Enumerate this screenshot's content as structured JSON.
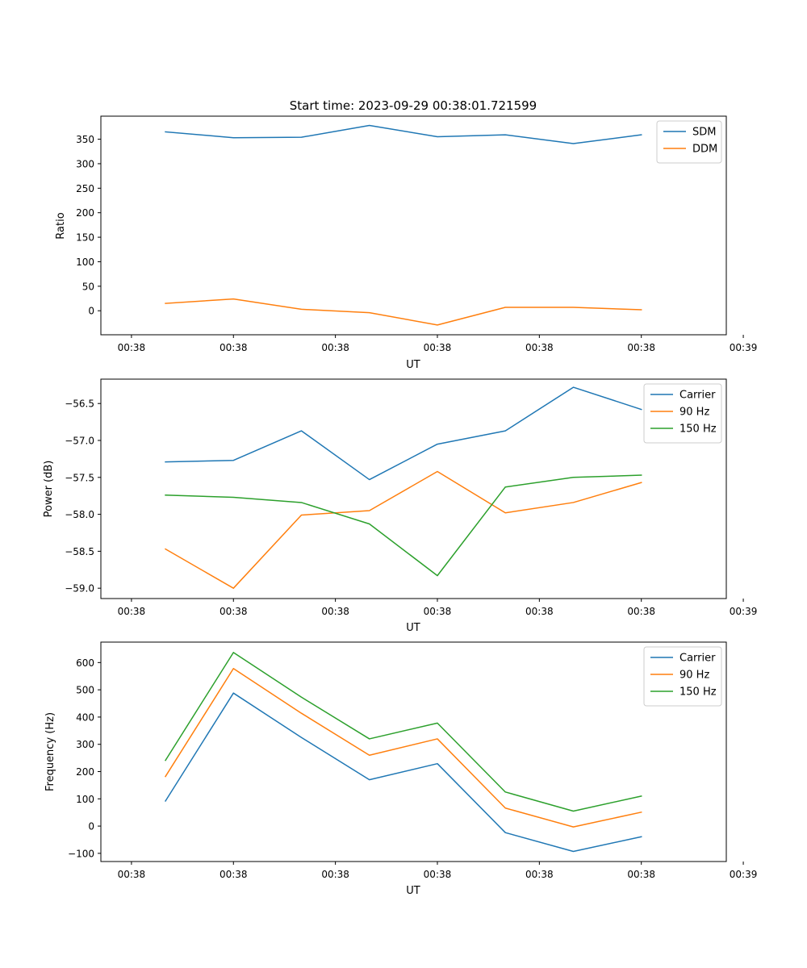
{
  "chart_data": [
    {
      "type": "line",
      "title": "Start time: 2023-09-29 00:38:01.721599",
      "xlabel": "UT",
      "ylabel": "Ratio",
      "x": [
        1,
        2,
        3,
        4,
        5,
        6,
        7,
        8
      ],
      "xlim": [
        0.05,
        9.25
      ],
      "xticks": [
        0.5,
        2,
        3.5,
        5,
        6.5,
        8,
        9.5
      ],
      "xtick_labels": [
        "00:38",
        "00:38",
        "00:38",
        "00:38",
        "00:38",
        "00:38",
        "00:39"
      ],
      "ylim": [
        -49,
        397
      ],
      "yticks": [
        0,
        50,
        100,
        150,
        200,
        250,
        300,
        350
      ],
      "ytick_labels": [
        "0",
        "50",
        "100",
        "150",
        "200",
        "250",
        "300",
        "350"
      ],
      "legend": "top-right",
      "series": [
        {
          "name": "SDM",
          "color": "#1f77b4",
          "values": [
            365,
            353,
            354,
            378,
            355,
            359,
            341,
            359
          ]
        },
        {
          "name": "DDM",
          "color": "#ff7f0e",
          "values": [
            15,
            24,
            3,
            -4,
            -29,
            7,
            7,
            2
          ]
        }
      ]
    },
    {
      "type": "line",
      "title": "",
      "xlabel": "UT",
      "ylabel": "Power (dB)",
      "x": [
        1,
        2,
        3,
        4,
        5,
        6,
        7,
        8
      ],
      "xlim": [
        0.05,
        9.25
      ],
      "xticks": [
        0.5,
        2,
        3.5,
        5,
        6.5,
        8,
        9.5
      ],
      "xtick_labels": [
        "00:38",
        "00:38",
        "00:38",
        "00:38",
        "00:38",
        "00:38",
        "00:39"
      ],
      "ylim": [
        -59.14,
        -56.17
      ],
      "yticks": [
        -59.0,
        -58.5,
        -58.0,
        -57.5,
        -57.0,
        -56.5
      ],
      "ytick_labels": [
        "−59.0",
        "−58.5",
        "−58.0",
        "−57.5",
        "−57.0",
        "−56.5"
      ],
      "legend": "top-right",
      "series": [
        {
          "name": "Carrier",
          "color": "#1f77b4",
          "values": [
            -57.29,
            -57.27,
            -56.87,
            -57.53,
            -57.05,
            -56.87,
            -56.28,
            -56.58
          ]
        },
        {
          "name": "90 Hz",
          "color": "#ff7f0e",
          "values": [
            -58.47,
            -59.0,
            -58.01,
            -57.95,
            -57.42,
            -57.98,
            -57.84,
            -57.57
          ]
        },
        {
          "name": "150 Hz",
          "color": "#2ca02c",
          "values": [
            -57.74,
            -57.77,
            -57.84,
            -58.13,
            -58.83,
            -57.63,
            -57.5,
            -57.47
          ]
        }
      ]
    },
    {
      "type": "line",
      "title": "",
      "xlabel": "UT",
      "ylabel": "Frequency (Hz)",
      "x": [
        1,
        2,
        3,
        4,
        5,
        6,
        7,
        8
      ],
      "xlim": [
        0.05,
        9.25
      ],
      "xticks": [
        0.5,
        2,
        3.5,
        5,
        6.5,
        8,
        9.5
      ],
      "xtick_labels": [
        "00:38",
        "00:38",
        "00:38",
        "00:38",
        "00:38",
        "00:38",
        "00:39"
      ],
      "ylim": [
        -130,
        675
      ],
      "yticks": [
        -100,
        0,
        100,
        200,
        300,
        400,
        500,
        600
      ],
      "ytick_labels": [
        "−100",
        "0",
        "100",
        "200",
        "300",
        "400",
        "500",
        "600"
      ],
      "legend": "top-right",
      "series": [
        {
          "name": "Carrier",
          "color": "#1f77b4",
          "values": [
            92,
            488,
            325,
            170,
            229,
            -24,
            -93,
            -39
          ]
        },
        {
          "name": "90 Hz",
          "color": "#ff7f0e",
          "values": [
            182,
            578,
            414,
            260,
            320,
            66,
            -3,
            51
          ]
        },
        {
          "name": "150 Hz",
          "color": "#2ca02c",
          "values": [
            241,
            637,
            473,
            320,
            378,
            125,
            55,
            110
          ]
        }
      ]
    }
  ]
}
